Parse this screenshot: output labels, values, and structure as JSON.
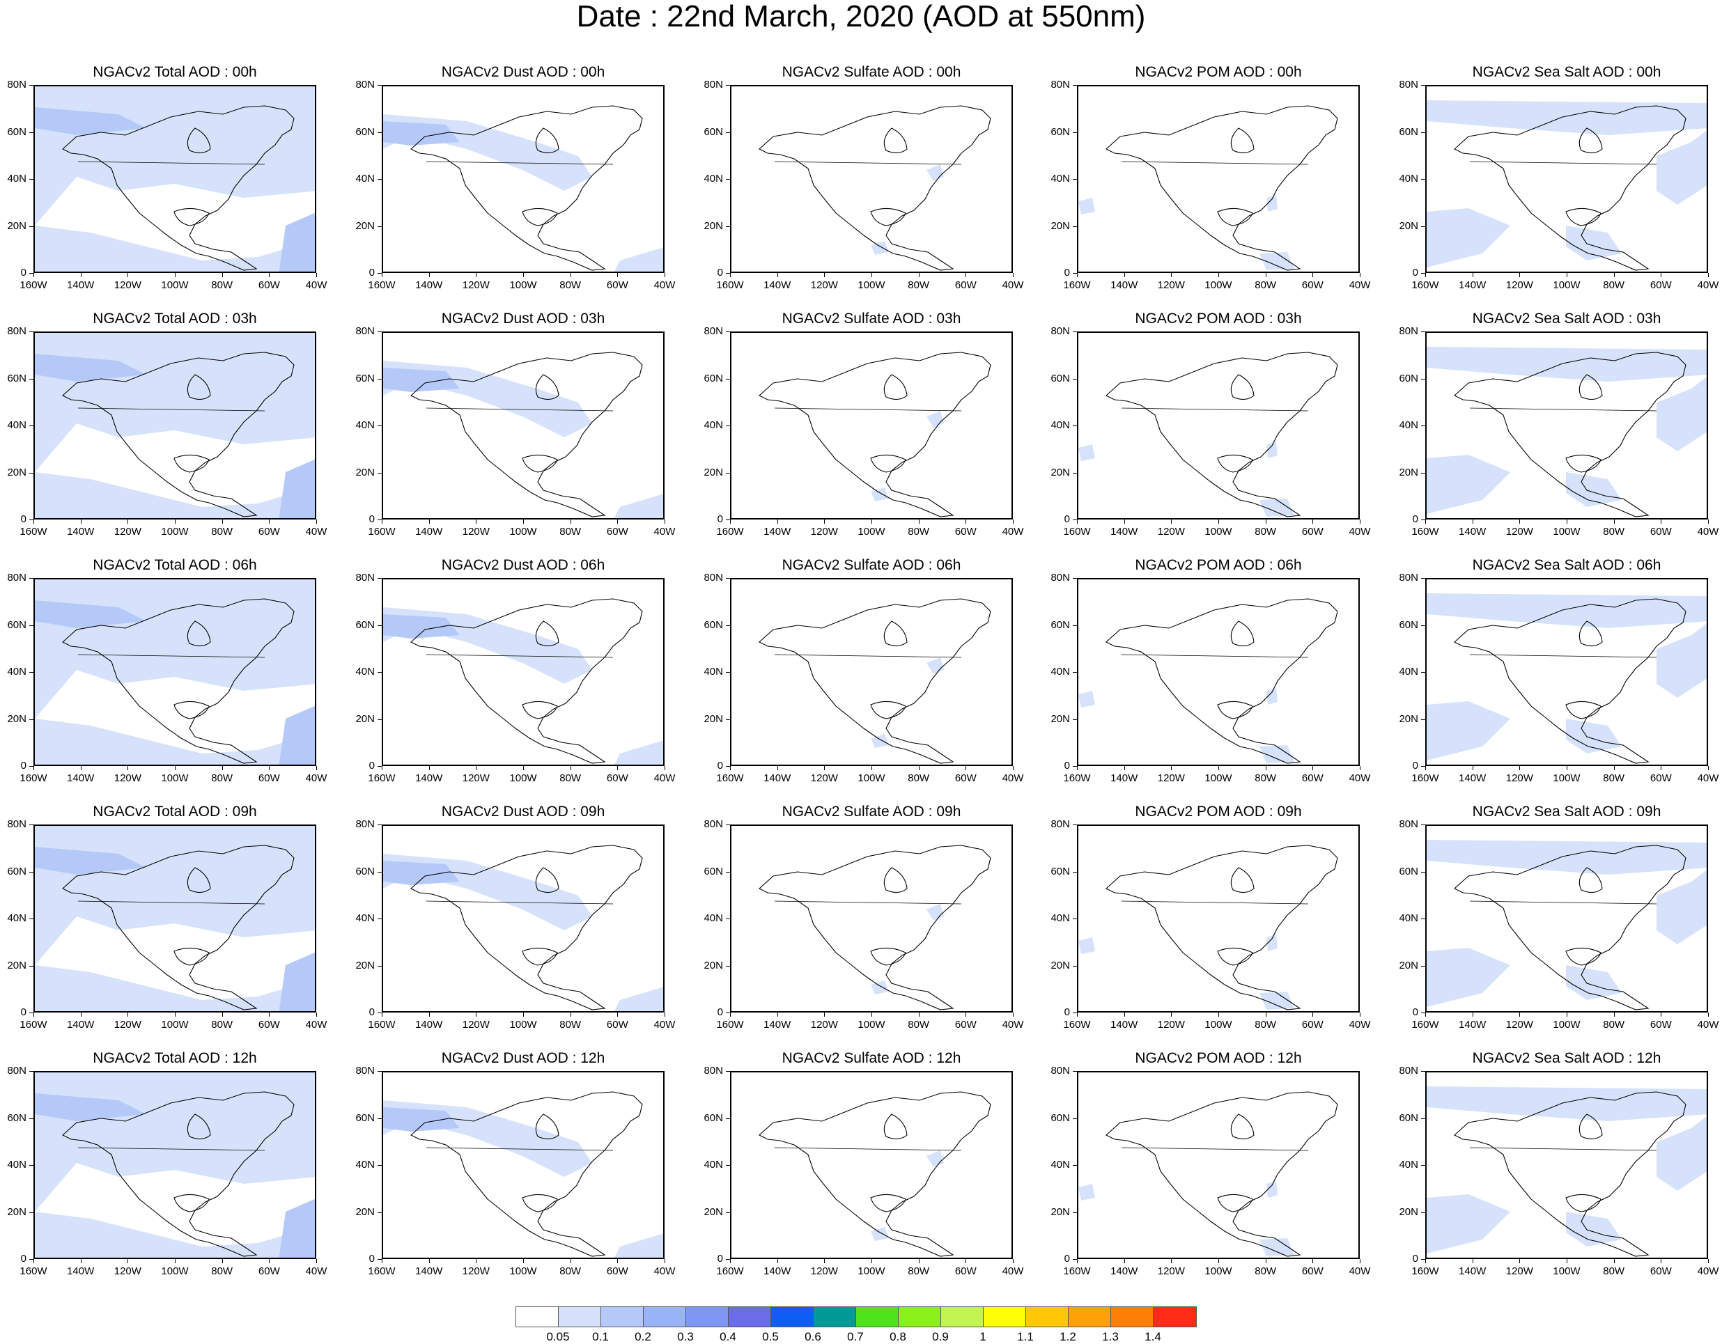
{
  "title": "Date : 22nd March, 2020 (AOD at 550nm)",
  "panel_titles": [
    [
      "NGACv2 Total AOD : 00h",
      "NGACv2 Dust AOD : 00h",
      "NGACv2 Sulfate AOD : 00h",
      "NGACv2 POM AOD : 00h",
      "NGACv2 Sea Salt AOD : 00h"
    ],
    [
      "NGACv2 Total AOD : 03h",
      "NGACv2 Dust AOD : 03h",
      "NGACv2 Sulfate AOD : 03h",
      "NGACv2 POM AOD : 03h",
      "NGACv2 Sea Salt AOD : 03h"
    ],
    [
      "NGACv2 Total AOD : 06h",
      "NGACv2 Dust AOD : 06h",
      "NGACv2 Sulfate AOD : 06h",
      "NGACv2 POM AOD : 06h",
      "NGACv2 Sea Salt AOD : 06h"
    ],
    [
      "NGACv2 Total AOD : 09h",
      "NGACv2 Dust AOD : 09h",
      "NGACv2 Sulfate AOD : 09h",
      "NGACv2 POM AOD : 09h",
      "NGACv2 Sea Salt  AOD : 09h"
    ],
    [
      "NGACv2 Total AOD  : 12h",
      "NGACv2 Dust AOD : 12h",
      "NGACv2 Sulfate AOD : 12h",
      "NGACv2 POM  AOD : 12h",
      "NGACv2 Sea Salt  AOD : 12h"
    ]
  ],
  "lat_ticks": [
    "80N",
    "60N",
    "40N",
    "20N",
    "0"
  ],
  "lon_ticks": [
    "160W",
    "140W",
    "120W",
    "100W",
    "80W",
    "60W",
    "40W"
  ],
  "legend": {
    "labels": [
      "0.05",
      "0.1",
      "0.2",
      "0.3",
      "0.4",
      "0.5",
      "0.6",
      "0.7",
      "0.8",
      "0.9",
      "1",
      "1.1",
      "1.2",
      "1.3",
      "1.4"
    ],
    "colors": [
      "#ffffff",
      "#d6e2fb",
      "#b5c9f9",
      "#98b3f7",
      "#7e97f2",
      "#6b6ce8",
      "#0d5ff3",
      "#029a97",
      "#4ee31a",
      "#8cf01b",
      "#c1f450",
      "#fefe07",
      "#ffc806",
      "#ffa107",
      "#ff7f06",
      "#ff2b16"
    ]
  },
  "aod_colors": {
    "light": "#d6e2fb",
    "mid": "#b5c9f9",
    "coast": "#000000"
  }
}
